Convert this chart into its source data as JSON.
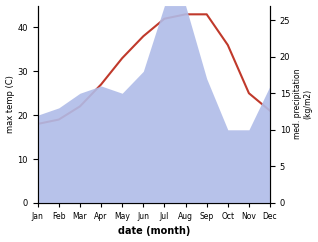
{
  "months": [
    "Jan",
    "Feb",
    "Mar",
    "Apr",
    "May",
    "Jun",
    "Jul",
    "Aug",
    "Sep",
    "Oct",
    "Nov",
    "Dec"
  ],
  "temp": [
    18,
    19,
    22,
    27,
    33,
    38,
    42,
    43,
    43,
    36,
    25,
    21
  ],
  "precip": [
    12,
    13,
    15,
    16,
    15,
    18,
    27,
    27,
    17,
    10,
    10,
    16
  ],
  "temp_color": "#c0392b",
  "precip_color_fill": "#b0bce8",
  "temp_ylim": [
    0,
    45
  ],
  "precip_ylim": [
    0,
    27
  ],
  "temp_yticks": [
    0,
    10,
    20,
    30,
    40
  ],
  "precip_yticks": [
    0,
    5,
    10,
    15,
    20,
    25
  ],
  "ylabel_left": "max temp (C)",
  "ylabel_right": "med. precipitation\n(kg/m2)",
  "xlabel": "date (month)",
  "fig_width": 3.18,
  "fig_height": 2.42
}
